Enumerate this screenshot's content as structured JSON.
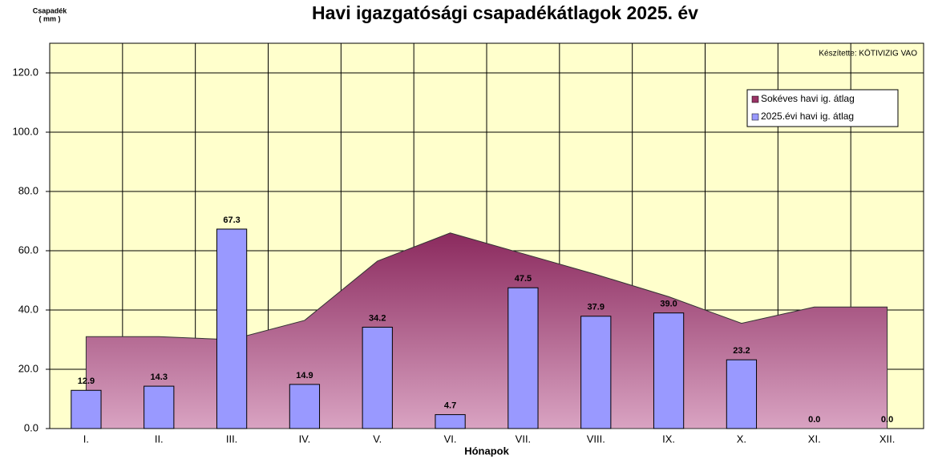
{
  "chart_data": {
    "type": "bar_area",
    "title": "Havi igazgatósági csapadékátlagok 2025. év",
    "ylabel": [
      "Csapadék",
      "( mm )"
    ],
    "xlabel": "Hónapok",
    "annotation": "Készítette: KÖTIVIZIG VAO",
    "categories": [
      "I.",
      "II.",
      "III.",
      "IV.",
      "V.",
      "VI.",
      "VII.",
      "VIII.",
      "IX.",
      "X.",
      "XI.",
      "XII."
    ],
    "series": [
      {
        "name": "Sokéves havi ig. átlag",
        "kind": "area",
        "color": "#993366",
        "values": [
          31,
          31,
          30,
          36.5,
          56.5,
          66,
          59,
          52,
          44.5,
          35.5,
          41,
          41
        ]
      },
      {
        "name": "2025.évi havi ig. átlag",
        "kind": "bar",
        "color": "#9999ff",
        "values": [
          12.9,
          14.3,
          67.3,
          14.9,
          34.2,
          4.7,
          47.5,
          37.9,
          39.0,
          23.2,
          0.0,
          0.0
        ],
        "value_labels": [
          "12.9",
          "14.3",
          "67.3",
          "14.9",
          "34.2",
          "4.7",
          "47.5",
          "37.9",
          "39.0",
          "23.2",
          "0.0",
          "0.0"
        ]
      }
    ],
    "ylim": [
      0,
      130
    ],
    "yticks": [
      {
        "value": 0,
        "label": "0.0"
      },
      {
        "value": 20,
        "label": "20.0"
      },
      {
        "value": 40,
        "label": "40.0"
      },
      {
        "value": 60,
        "label": "60.0"
      },
      {
        "value": 80,
        "label": "80.0"
      },
      {
        "value": 100,
        "label": "100.0"
      },
      {
        "value": 120,
        "label": "120.0"
      }
    ],
    "grid": true,
    "background": "#ffffcc",
    "legend": "upper right"
  }
}
